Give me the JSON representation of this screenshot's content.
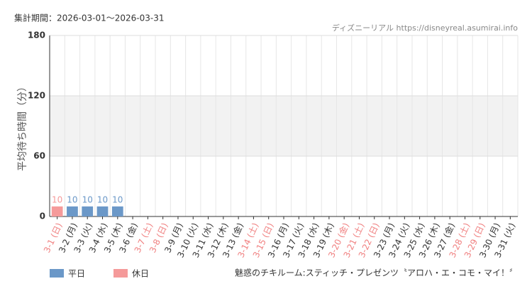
{
  "chart_data": {
    "type": "bar",
    "header": "集計期間：2026-03-01～2026-03-31",
    "source": "ディズニーリアル https://disneyreal.asumirai.info",
    "y_label": "平均待ち時間（分）",
    "footnote": "魅惑のチキルーム:スティッチ・プレゼンツ〝アロハ・エ・コモ・マイ！〞",
    "categories": [
      "3-1 (日)",
      "3-2 (月)",
      "3-3 (火)",
      "3-4 (水)",
      "3-5 (木)",
      "3-6 (金)",
      "3-7 (土)",
      "3-8 (日)",
      "3-9 (月)",
      "3-10 (火)",
      "3-11 (水)",
      "3-12 (木)",
      "3-13 (金)",
      "3-14 (土)",
      "3-15 (日)",
      "3-16 (月)",
      "3-17 (火)",
      "3-18 (水)",
      "3-19 (木)",
      "3-20 (金)",
      "3-21 (土)",
      "3-22 (日)",
      "3-23 (月)",
      "3-24 (火)",
      "3-25 (水)",
      "3-26 (木)",
      "3-27 (金)",
      "3-28 (土)",
      "3-29 (日)",
      "3-30 (月)",
      "3-31 (火)"
    ],
    "category_colors": [
      "#f08080",
      "#333",
      "#333",
      "#333",
      "#333",
      "#333",
      "#f08080",
      "#f08080",
      "#333",
      "#333",
      "#333",
      "#333",
      "#333",
      "#f08080",
      "#f08080",
      "#333",
      "#333",
      "#333",
      "#333",
      "#f08080",
      "#f08080",
      "#f08080",
      "#333",
      "#333",
      "#333",
      "#333",
      "#333",
      "#f08080",
      "#f08080",
      "#333",
      "#333"
    ],
    "series": [
      {
        "name": "平日",
        "color": "#6b98c8",
        "values": [
          null,
          10,
          10,
          10,
          10,
          null,
          null,
          null,
          null,
          null,
          null,
          null,
          null,
          null,
          null,
          null,
          null,
          null,
          null,
          null,
          null,
          null,
          null,
          null,
          null,
          null,
          null,
          null,
          null,
          null,
          null
        ]
      },
      {
        "name": "休日",
        "color": "#f59a9a",
        "values": [
          10,
          null,
          null,
          null,
          null,
          null,
          null,
          null,
          null,
          null,
          null,
          null,
          null,
          null,
          null,
          null,
          null,
          null,
          null,
          null,
          null,
          null,
          null,
          null,
          null,
          null,
          null,
          null,
          null,
          null,
          null
        ]
      }
    ],
    "ylim": [
      0,
      180
    ],
    "yticks": [
      0,
      60,
      120,
      180
    ],
    "grid": true
  }
}
